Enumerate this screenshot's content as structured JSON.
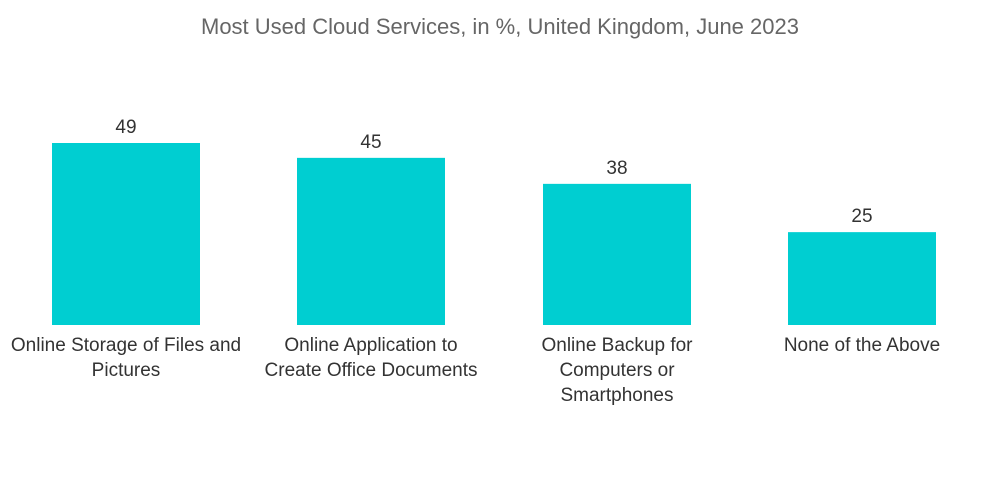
{
  "title": "Most Used Cloud Services, in %, United Kingdom, June 2023",
  "colors": {
    "bar": "#00CED1",
    "text": "#333333",
    "title": "#666666"
  },
  "chart_data": {
    "type": "bar",
    "title": "Most Used Cloud Services, in %, United Kingdom, June 2023",
    "categories": [
      [
        "Online Storage of Files and",
        "Pictures"
      ],
      [
        "Online Application to",
        "Create Office Documents"
      ],
      [
        "Online Backup for",
        "Computers or",
        "Smartphones"
      ],
      [
        "None of the Above"
      ]
    ],
    "values": [
      49,
      45,
      38,
      25
    ],
    "unit": "%",
    "xlabel": "",
    "ylabel": "",
    "ylim": [
      0,
      49
    ],
    "grid": false,
    "legend": "none",
    "data_labels": true
  }
}
